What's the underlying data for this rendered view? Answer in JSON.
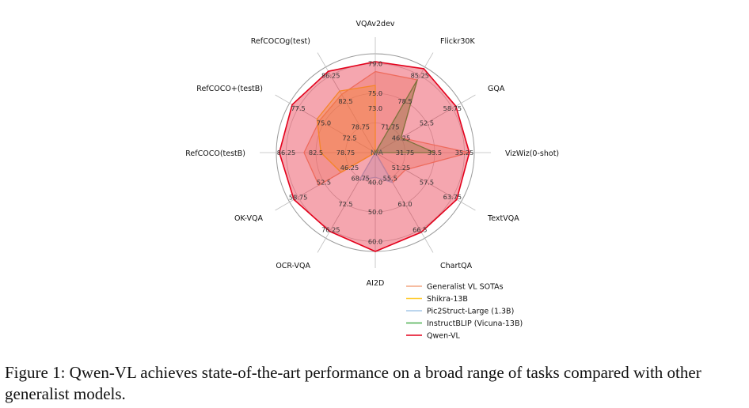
{
  "caption": "Figure 1: Qwen-VL achieves state-of-the-art performance on a broad range of tasks compared with other generalist models.",
  "chart_data": {
    "type": "radar",
    "center_label": "N/A",
    "axes": [
      {
        "name": "VQAv2dev",
        "ticks": [
          "73.0",
          "75.0",
          "79.0"
        ],
        "tick_r": [
          0.45,
          0.6,
          0.9
        ]
      },
      {
        "name": "Flickr30K",
        "ticks": [
          "71.75",
          "78.5",
          "85.25"
        ],
        "tick_r": [
          0.3,
          0.6,
          0.9
        ]
      },
      {
        "name": "GQA",
        "ticks": [
          "46.25",
          "52.5",
          "58.75"
        ],
        "tick_r": [
          0.3,
          0.6,
          0.9
        ]
      },
      {
        "name": "VizWiz(0-shot)",
        "ticks": [
          "31.75",
          "33.5",
          "35.25"
        ],
        "tick_r": [
          0.3,
          0.6,
          0.9
        ]
      },
      {
        "name": "TextVQA",
        "ticks": [
          "51.25",
          "57.5",
          "63.75"
        ],
        "tick_r": [
          0.3,
          0.6,
          0.9
        ]
      },
      {
        "name": "ChartQA",
        "ticks": [
          "55.5",
          "61.0",
          "66.5"
        ],
        "tick_r": [
          0.3,
          0.6,
          0.9
        ]
      },
      {
        "name": "AI2D",
        "ticks": [
          "40.0",
          "50.0",
          "60.0"
        ],
        "tick_r": [
          0.3,
          0.6,
          0.9
        ]
      },
      {
        "name": "OCR-VQA",
        "ticks": [
          "68.75",
          "72.5",
          "76.25"
        ],
        "tick_r": [
          0.3,
          0.6,
          0.9
        ]
      },
      {
        "name": "OK-VQA",
        "ticks": [
          "46.25",
          "52.5",
          "58.75"
        ],
        "tick_r": [
          0.3,
          0.6,
          0.9
        ]
      },
      {
        "name": "RefCOCO(testB)",
        "ticks": [
          "78.75",
          "82.5",
          "86.25"
        ],
        "tick_r": [
          0.3,
          0.6,
          0.9
        ]
      },
      {
        "name": "RefCOCO+(testB)",
        "ticks": [
          "72.5",
          "75.0",
          "77.5"
        ],
        "tick_r": [
          0.3,
          0.6,
          0.9
        ]
      },
      {
        "name": "RefCOCOg(test)",
        "ticks": [
          "78.75",
          "82.5",
          "86.25"
        ],
        "tick_r": [
          0.3,
          0.6,
          0.9
        ]
      }
    ],
    "series": [
      {
        "name": "Generalist VL SOTAs",
        "color": "#f4a582",
        "fill": true,
        "values": [
          0.82,
          0.85,
          0.3,
          0.95,
          0.35,
          0.35,
          0.0,
          0.0,
          0.66,
          0.72,
          0.65,
          0.68
        ]
      },
      {
        "name": "Shikra-13B",
        "color": "#ffcc33",
        "fill": true,
        "values": [
          0.68,
          0.0,
          0.0,
          0.0,
          0.0,
          0.0,
          0.0,
          0.0,
          0.4,
          0.55,
          0.68,
          0.72
        ]
      },
      {
        "name": "Pic2Struct-Large (1.3B)",
        "color": "#a6c8e8",
        "fill": true,
        "values": [
          0.0,
          0.0,
          0.0,
          0.0,
          0.0,
          0.35,
          0.25,
          0.32,
          0.0,
          0.0,
          0.0,
          0.0
        ]
      },
      {
        "name": "InstructBLIP (Vicuna-13B)",
        "color": "#4caf50",
        "fill": true,
        "values": [
          0.0,
          0.85,
          0.3,
          0.6,
          0.0,
          0.0,
          0.0,
          0.0,
          0.0,
          0.0,
          0.0,
          0.0
        ]
      },
      {
        "name": "Qwen-VL",
        "color": "#e3001b",
        "fill": true,
        "values": [
          0.92,
          0.98,
          0.94,
          0.95,
          0.95,
          0.93,
          1.0,
          0.92,
          0.95,
          0.97,
          0.97,
          0.95
        ]
      }
    ]
  }
}
